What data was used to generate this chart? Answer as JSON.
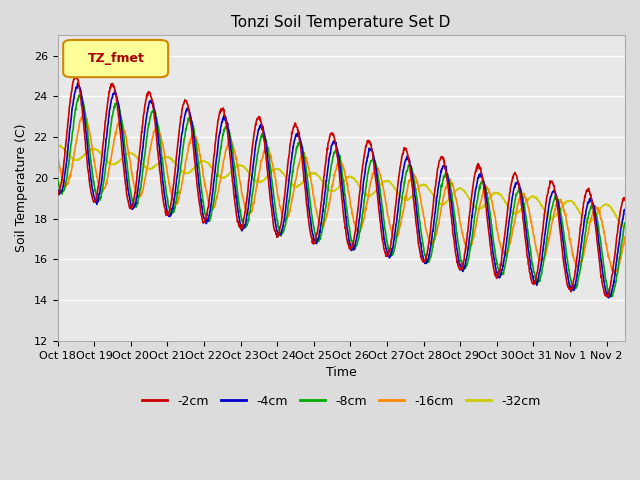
{
  "title": "Tonzi Soil Temperature Set D",
  "xlabel": "Time",
  "ylabel": "Soil Temperature (C)",
  "ylim": [
    12,
    27
  ],
  "yticks": [
    12,
    14,
    16,
    18,
    20,
    22,
    24,
    26
  ],
  "n_days": 15.5,
  "pts_per_day": 96,
  "xtick_labels": [
    "Oct 18",
    "Oct 19",
    "Oct 20",
    "Oct 21",
    "Oct 22",
    "Oct 23",
    "Oct 24",
    "Oct 25",
    "Oct 26",
    "Oct 27",
    "Oct 28",
    "Oct 29",
    "Oct 30",
    "Oct 31",
    "Nov 1",
    "Nov 2"
  ],
  "series_labels": [
    "-2cm",
    "-4cm",
    "-8cm",
    "-16cm",
    "-32cm"
  ],
  "series_colors": [
    "#cc0000",
    "#0000cc",
    "#00aa00",
    "#ff8800",
    "#cccc00"
  ],
  "bg_color": "#dcdcdc",
  "plot_bg_color": "#e8e8e8",
  "legend_label": "TZ_fmet",
  "legend_label_color": "#aa0000",
  "legend_box_face": "#ffff99",
  "legend_box_edge": "#cc8800"
}
